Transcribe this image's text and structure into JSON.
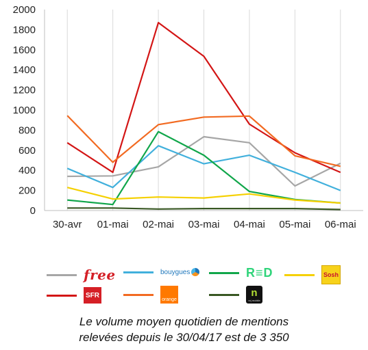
{
  "chart_data": {
    "type": "line",
    "categories": [
      "30-avr",
      "01-mai",
      "02-mai",
      "03-mai",
      "04-mai",
      "05-mai",
      "06-mai"
    ],
    "ylim": [
      0,
      2000
    ],
    "yticks": [
      "0",
      "200",
      "400",
      "600",
      "800",
      "1000",
      "1200",
      "1400",
      "1600",
      "1800",
      "2000"
    ],
    "grid": "vertical",
    "legend_placement": "bottom",
    "series": [
      {
        "key": "free",
        "color": "#a6a6a6",
        "values": [
          340,
          345,
          435,
          735,
          675,
          245,
          470
        ]
      },
      {
        "key": "bouygues",
        "color": "#41b0dc",
        "values": [
          420,
          230,
          645,
          465,
          550,
          380,
          200
        ]
      },
      {
        "key": "red",
        "color": "#10a64a",
        "values": [
          105,
          60,
          785,
          550,
          190,
          110,
          75
        ]
      },
      {
        "key": "sosh",
        "color": "#f5d000",
        "values": [
          230,
          115,
          135,
          125,
          165,
          105,
          75
        ]
      },
      {
        "key": "sfr",
        "color": "#d31515",
        "values": [
          675,
          380,
          1870,
          1535,
          860,
          575,
          380
        ]
      },
      {
        "key": "orange",
        "color": "#f26a21",
        "values": [
          945,
          480,
          855,
          930,
          940,
          545,
          440
        ]
      },
      {
        "key": "nrj",
        "color": "#385723",
        "values": [
          25,
          25,
          15,
          20,
          20,
          20,
          10
        ]
      }
    ]
  },
  "legend": {
    "free_text": "free",
    "bouygues_text": "bouygues",
    "red_text": "R≡D",
    "sosh_text": "Sosh",
    "sfr_text": "SFR",
    "orange_text": "orange",
    "nrj_text": "n",
    "nrj_sub": "nrj mobile"
  },
  "caption": {
    "line1": "Le volume moyen quotidien de mentions",
    "line2": "relevées depuis le 30/04/17 est de 3 350"
  }
}
